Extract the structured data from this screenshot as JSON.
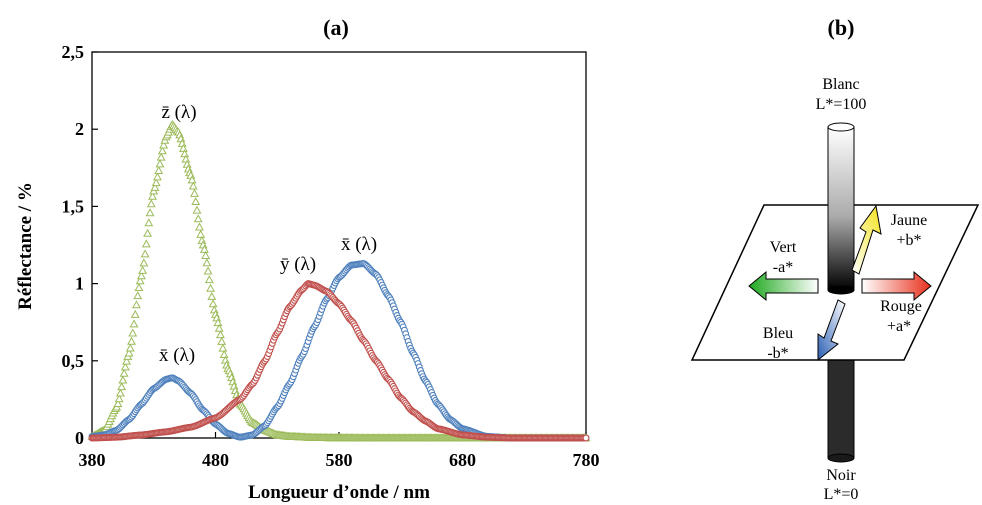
{
  "panel_a_title": "(a)",
  "panel_b_title": "(b)",
  "chart_data": {
    "type": "scatter",
    "title": "(a)",
    "xlabel": "Longueur d’onde / nm",
    "ylabel": "Réflectance / %",
    "xlim": [
      380,
      780
    ],
    "ylim": [
      0,
      2.5
    ],
    "xticks": [
      "380",
      "480",
      "580",
      "680",
      "780"
    ],
    "yticks": [
      "0",
      "0,5",
      "1",
      "1,5",
      "2",
      "2,5"
    ],
    "grid": false,
    "series": [
      {
        "name": "z̄ (λ)",
        "color": "#9bbb59",
        "marker": "triangle",
        "x": [
          380,
          390,
          400,
          410,
          420,
          430,
          440,
          445,
          450,
          460,
          470,
          480,
          490,
          500,
          510,
          520,
          530,
          540,
          560,
          580,
          600,
          640,
          680,
          720,
          780
        ],
        "y": [
          0.01,
          0.05,
          0.2,
          0.55,
          1.05,
          1.6,
          1.95,
          2.03,
          1.98,
          1.7,
          1.25,
          0.8,
          0.45,
          0.22,
          0.1,
          0.05,
          0.02,
          0.01,
          0.003,
          0.001,
          0,
          0,
          0,
          0,
          0
        ]
      },
      {
        "name": "x̄ (λ) — bleu",
        "color": "#4f81bd",
        "marker": "circle",
        "x": [
          380,
          390,
          400,
          410,
          420,
          430,
          440,
          445,
          450,
          460,
          470,
          480,
          490,
          500,
          510,
          520,
          530,
          540,
          550,
          560,
          570,
          580,
          590,
          600,
          610,
          620,
          630,
          640,
          650,
          660,
          670,
          680,
          700,
          720,
          780
        ],
        "y": [
          0.01,
          0.02,
          0.05,
          0.12,
          0.22,
          0.32,
          0.38,
          0.39,
          0.37,
          0.29,
          0.18,
          0.09,
          0.03,
          0.005,
          0.02,
          0.08,
          0.2,
          0.35,
          0.53,
          0.72,
          0.9,
          1.04,
          1.12,
          1.13,
          1.06,
          0.92,
          0.75,
          0.55,
          0.37,
          0.22,
          0.12,
          0.06,
          0.01,
          0,
          0
        ]
      },
      {
        "name": "ȳ (λ)",
        "color": "#c0504d",
        "marker": "circle",
        "x": [
          380,
          400,
          420,
          440,
          460,
          480,
          500,
          510,
          520,
          530,
          540,
          550,
          555,
          560,
          570,
          580,
          590,
          600,
          610,
          620,
          630,
          640,
          650,
          660,
          680,
          700,
          720,
          780
        ],
        "y": [
          0,
          0.005,
          0.02,
          0.04,
          0.07,
          0.13,
          0.25,
          0.35,
          0.5,
          0.68,
          0.85,
          0.96,
          1.0,
          0.99,
          0.95,
          0.87,
          0.76,
          0.63,
          0.5,
          0.38,
          0.26,
          0.17,
          0.11,
          0.06,
          0.02,
          0.005,
          0,
          0
        ]
      }
    ],
    "annotations": [
      "z̄ (λ)",
      "ȳ (λ)",
      "x̄ (λ)",
      "x̄ (λ)"
    ]
  },
  "diagram": {
    "blanc": "Blanc",
    "l100": "L*=100",
    "noir": "Noir",
    "l0": "L*=0",
    "vert": "Vert",
    "minus_a": "-a*",
    "jaune": "Jaune",
    "plus_b": "+b*",
    "rouge": "Rouge",
    "plus_a": "+a*",
    "bleu": "Bleu",
    "minus_b": "-b*"
  }
}
